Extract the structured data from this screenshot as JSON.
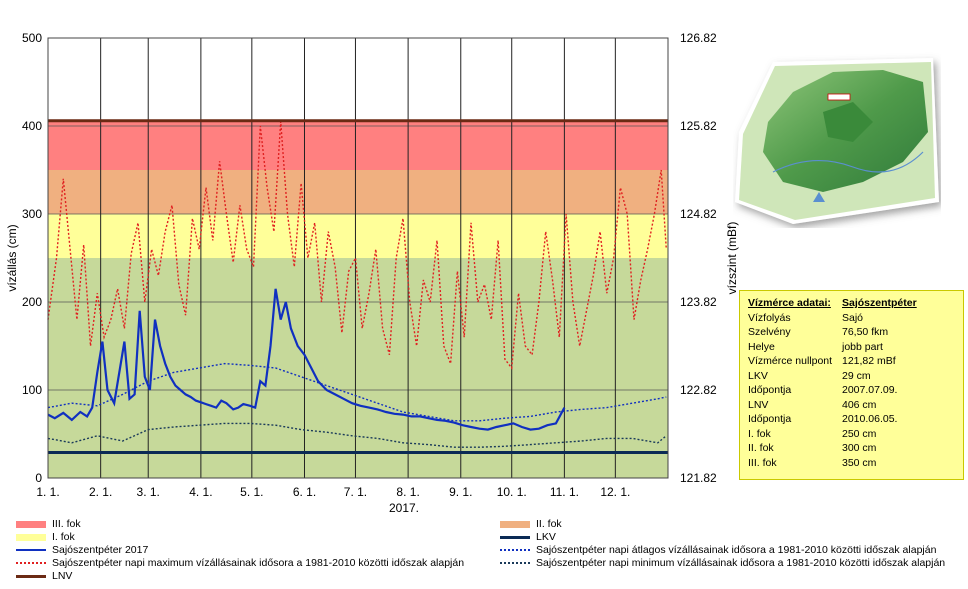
{
  "chart_data": {
    "type": "line",
    "year_label": "2017.",
    "ylabel": "vízállás (cm)",
    "y2label": "vízszint (mBf)",
    "ylim": [
      0,
      500
    ],
    "y_ticks": [
      "0",
      "100",
      "200",
      "300",
      "400",
      "500"
    ],
    "y2_ticks": [
      "121.82",
      "122.82",
      "123.82",
      "124.82",
      "125.82",
      "126.82"
    ],
    "x_ticks": [
      "1. 1.",
      "2. 1.",
      "3. 1.",
      "4. 1.",
      "5. 1.",
      "6. 1.",
      "7. 1.",
      "8. 1.",
      "9. 1.",
      "10. 1.",
      "11. 1.",
      "12. 1."
    ],
    "bands": [
      {
        "name": "III. fok",
        "from": 350,
        "to": 406,
        "color": "#ff8080"
      },
      {
        "name": "II. fok",
        "from": 300,
        "to": 350,
        "color": "#f0b080"
      },
      {
        "name": "I. fok",
        "from": 250,
        "to": 300,
        "color": "#ffff99"
      },
      {
        "name": "",
        "from": 0,
        "to": 250,
        "color": "#c6d99a"
      }
    ],
    "hlines": [
      {
        "name": "LNV",
        "value": 406,
        "color": "#6b2a14"
      },
      {
        "name": "LKV",
        "value": 29,
        "color": "#0a2a55"
      }
    ],
    "series": [
      {
        "name": "Sajószentpéter 2017",
        "style": "solid",
        "color": "#1030c0",
        "x": [
          1,
          5,
          10,
          15,
          20,
          24,
          27,
          30,
          33,
          36,
          40,
          43,
          46,
          49,
          52,
          55,
          58,
          61,
          64,
          67,
          70,
          73,
          76,
          79,
          82,
          85,
          88,
          91,
          94,
          97,
          100,
          103,
          106,
          110,
          113,
          116,
          120,
          123,
          126,
          129,
          132,
          135,
          138,
          141,
          144,
          148,
          152,
          156,
          160,
          165,
          170,
          175,
          180,
          185,
          190,
          195,
          200,
          205,
          210,
          215,
          220,
          225,
          230,
          235,
          240,
          245,
          250,
          255,
          260,
          265,
          270,
          275,
          280,
          285,
          290,
          295,
          300,
          305
        ],
        "values": [
          72,
          68,
          74,
          66,
          75,
          70,
          80,
          120,
          155,
          100,
          85,
          120,
          155,
          90,
          95,
          190,
          115,
          100,
          180,
          150,
          130,
          115,
          105,
          100,
          95,
          92,
          88,
          86,
          84,
          82,
          80,
          88,
          85,
          78,
          80,
          84,
          82,
          80,
          110,
          105,
          150,
          215,
          180,
          200,
          170,
          150,
          140,
          125,
          110,
          100,
          95,
          90,
          85,
          82,
          80,
          78,
          75,
          73,
          72,
          70,
          70,
          68,
          66,
          65,
          63,
          60,
          58,
          56,
          55,
          58,
          60,
          62,
          58,
          55,
          56,
          60,
          62,
          80
        ]
      },
      {
        "name": "Sajószentpéter napi átlagos vízállásainak idősora a 1981-2010 közötti időszak alapján",
        "style": "dotted",
        "color": "#1030c0",
        "x": [
          1,
          15,
          30,
          45,
          60,
          75,
          90,
          105,
          120,
          135,
          150,
          165,
          180,
          195,
          210,
          225,
          240,
          255,
          270,
          285,
          300,
          315,
          330,
          345,
          360,
          365
        ],
        "values": [
          80,
          85,
          82,
          95,
          110,
          120,
          125,
          130,
          128,
          125,
          115,
          105,
          95,
          85,
          75,
          70,
          65,
          65,
          68,
          70,
          75,
          78,
          80,
          85,
          90,
          92
        ]
      },
      {
        "name": "Sajószentpéter napi maximum vízállásainak idősora a 1981-2010 közötti időszak alapján",
        "style": "dotted",
        "color": "#e02020",
        "x": [
          1,
          6,
          10,
          14,
          18,
          22,
          26,
          30,
          34,
          38,
          42,
          46,
          50,
          54,
          58,
          62,
          66,
          70,
          74,
          78,
          82,
          86,
          90,
          94,
          98,
          102,
          106,
          110,
          114,
          118,
          122,
          126,
          130,
          134,
          138,
          142,
          146,
          150,
          154,
          158,
          162,
          166,
          170,
          174,
          178,
          182,
          186,
          190,
          194,
          198,
          202,
          206,
          210,
          214,
          218,
          222,
          226,
          230,
          234,
          238,
          242,
          246,
          250,
          254,
          258,
          262,
          266,
          270,
          274,
          278,
          282,
          286,
          290,
          294,
          298,
          302,
          306,
          310,
          314,
          318,
          322,
          326,
          330,
          334,
          338,
          342,
          346,
          350,
          354,
          358,
          362,
          365
        ],
        "values": [
          180,
          250,
          340,
          260,
          180,
          265,
          150,
          210,
          160,
          180,
          215,
          170,
          255,
          290,
          200,
          260,
          230,
          280,
          310,
          220,
          185,
          295,
          260,
          330,
          270,
          360,
          300,
          245,
          310,
          260,
          240,
          400,
          330,
          280,
          405,
          300,
          240,
          335,
          250,
          290,
          200,
          280,
          240,
          165,
          235,
          250,
          170,
          210,
          260,
          170,
          140,
          250,
          295,
          200,
          150,
          225,
          200,
          270,
          150,
          130,
          235,
          160,
          290,
          200,
          220,
          180,
          270,
          135,
          125,
          210,
          150,
          140,
          200,
          280,
          225,
          160,
          300,
          200,
          150,
          190,
          230,
          280,
          210,
          250,
          330,
          300,
          180,
          225,
          260,
          300,
          350,
          260
        ]
      },
      {
        "name": "Sajószentpéter napi minimum vízállásainak idősora a 1981-2010 közötti időszak alapján",
        "style": "dotted",
        "color": "#1a3a5a",
        "x": [
          1,
          15,
          30,
          45,
          60,
          75,
          90,
          105,
          120,
          135,
          150,
          165,
          180,
          195,
          210,
          225,
          240,
          255,
          270,
          285,
          300,
          315,
          330,
          345,
          360,
          365
        ],
        "values": [
          45,
          40,
          48,
          42,
          55,
          58,
          60,
          62,
          62,
          60,
          55,
          52,
          48,
          45,
          40,
          38,
          35,
          35,
          36,
          38,
          40,
          42,
          45,
          45,
          40,
          48
        ]
      }
    ]
  },
  "info": {
    "header_key": "Vízmérce adatai:",
    "header_val": "Sajószentpéter",
    "rows": [
      {
        "k": "Vízfolyás",
        "v": "Sajó"
      },
      {
        "k": "Szelvény",
        "v": "76,50 fkm"
      },
      {
        "k": "Helye",
        "v": "jobb part"
      },
      {
        "k": "Vízmérce nullpont",
        "v": "121,82 mBf"
      },
      {
        "k": "LKV",
        "v": "29 cm"
      },
      {
        "k": "Időpontja",
        "v": "2007.07.09."
      },
      {
        "k": "LNV",
        "v": "406 cm"
      },
      {
        "k": "Időpontja",
        "v": "2010.06.05."
      },
      {
        "k": "I. fok",
        "v": "250 cm"
      },
      {
        "k": "II. fok",
        "v": "300 cm"
      },
      {
        "k": "III. fok",
        "v": "350 cm"
      }
    ]
  },
  "legend": {
    "iii_fok": "III. fok",
    "ii_fok": "II. fok",
    "i_fok": "I. fok",
    "lkv": "LKV",
    "s2017": "Sajószentpéter 2017",
    "avg": "Sajószentpéter napi átlagos vízállásainak idősora a 1981-2010 közötti időszak alapján",
    "max": "Sajószentpéter napi maximum vízállásainak idősora a 1981-2010 közötti időszak alapján",
    "min": "Sajószentpéter napi minimum vízállásainak idősora a 1981-2010 közötti időszak alapján",
    "lnv": "LNV"
  }
}
